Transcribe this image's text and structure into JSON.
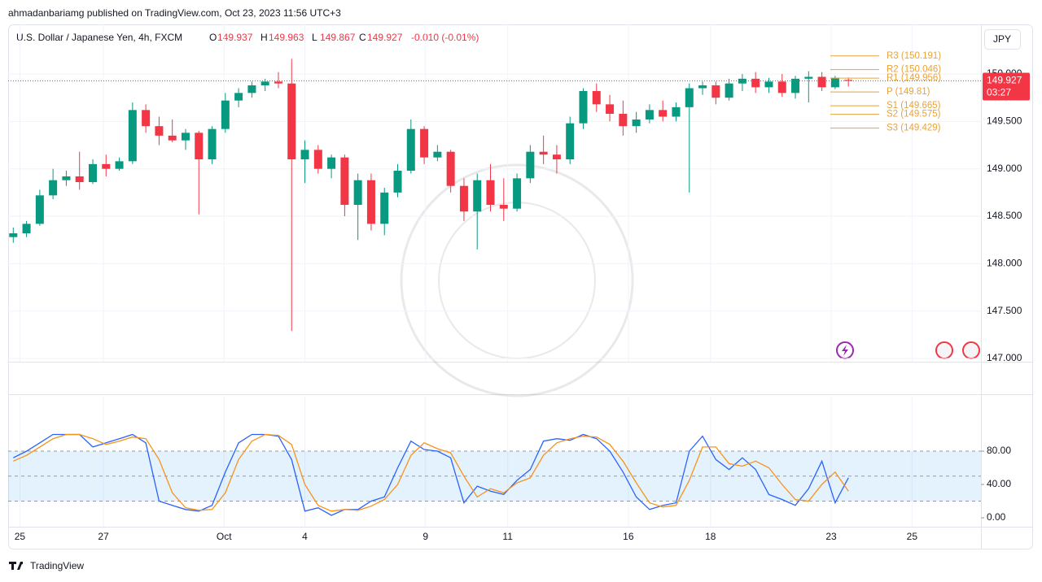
{
  "header": {
    "publisher": "ahmadanbariamg published on TradingView.com, Oct 23, 2023 11:56 UTC+3",
    "currency": "JPY",
    "footer": "TradingView"
  },
  "chart_data": [
    {
      "type": "candlestick",
      "legend": {
        "symbol": "U.S. Dollar / Japanese Yen, 4h, FXCM",
        "o_label": "O",
        "open": 149.937,
        "h_label": "H",
        "high": 149.963,
        "l_label": "L",
        "low": 149.867,
        "c_label": "C",
        "close": 149.927,
        "change": "-0.010 (-0.01%)"
      },
      "last_price": 149.927,
      "countdown": "03:27",
      "up_color": "#089981",
      "down_color": "#f23645",
      "xlim": [
        -1,
        73
      ],
      "xticks": [
        {
          "value": 0.5,
          "label": "25"
        },
        {
          "value": 6.8,
          "label": "27"
        },
        {
          "value": 15.9,
          "label": "Oct"
        },
        {
          "value": 22.0,
          "label": "4"
        },
        {
          "value": 31.1,
          "label": "9"
        },
        {
          "value": 37.3,
          "label": "11"
        },
        {
          "value": 46.4,
          "label": "16"
        },
        {
          "value": 52.6,
          "label": "18"
        },
        {
          "value": 61.7,
          "label": "23"
        },
        {
          "value": 67.8,
          "label": "25"
        }
      ],
      "ylim": [
        146.966,
        150.523
      ],
      "yticks": [
        {
          "value": 147,
          "label": "147.000"
        },
        {
          "value": 147.5,
          "label": "147.500"
        },
        {
          "value": 148,
          "label": "148.000"
        },
        {
          "value": 148.5,
          "label": "148.500"
        },
        {
          "value": 149,
          "label": "149.000"
        },
        {
          "value": 149.5,
          "label": "149.500"
        },
        {
          "value": 150,
          "label": "150.000"
        }
      ],
      "pivots": [
        {
          "value": 150.191,
          "label": "R3 (150.191)"
        },
        {
          "value": 150.046,
          "label": "R2 (150.046)"
        },
        {
          "value": 149.956,
          "label": "R1 (149.956)"
        },
        {
          "value": 149.81,
          "label": "P (149.81)"
        },
        {
          "value": 149.665,
          "label": "S1 (149.665)"
        },
        {
          "value": 149.575,
          "label": "S2 (149.575)"
        },
        {
          "value": 149.429,
          "label": "S3 (149.429)"
        }
      ],
      "pivot_color": "#e8a33d",
      "open": [
        148.28,
        148.32,
        148.42,
        148.72,
        148.88,
        148.92,
        148.86,
        149.05,
        149.0,
        149.08,
        149.62,
        149.45,
        149.35,
        149.3,
        149.38,
        149.1,
        149.42,
        149.72,
        149.8,
        149.88,
        149.92,
        149.9,
        149.1,
        149.2,
        149.0,
        149.12,
        148.62,
        148.88,
        148.42,
        148.75,
        148.98,
        149.42,
        149.12,
        149.18,
        148.82,
        148.55,
        148.88,
        148.62,
        148.58,
        148.9,
        149.18,
        149.15,
        149.1,
        149.48,
        149.82,
        149.68,
        149.58,
        149.45,
        149.52,
        149.62,
        149.55,
        149.65,
        149.85,
        149.88,
        149.75,
        149.9,
        149.95,
        149.86,
        149.92,
        149.8,
        149.95,
        149.97,
        149.86,
        149.937
      ],
      "high": [
        148.38,
        148.45,
        148.78,
        149.0,
        148.98,
        149.18,
        149.1,
        149.15,
        149.12,
        149.7,
        149.68,
        149.55,
        149.52,
        149.42,
        149.4,
        149.45,
        149.8,
        149.85,
        149.92,
        149.95,
        150.02,
        150.16,
        149.3,
        149.25,
        149.15,
        149.15,
        148.95,
        148.95,
        148.8,
        149.05,
        149.52,
        149.45,
        149.25,
        149.2,
        148.9,
        148.95,
        149.05,
        148.9,
        148.95,
        149.25,
        149.35,
        149.25,
        149.55,
        149.85,
        149.9,
        149.78,
        149.72,
        149.6,
        149.68,
        149.72,
        149.7,
        149.9,
        149.92,
        149.92,
        149.95,
        150.0,
        150.02,
        149.96,
        150.0,
        149.98,
        150.03,
        150.02,
        149.98,
        149.963
      ],
      "low": [
        148.22,
        148.28,
        148.4,
        148.68,
        148.82,
        148.78,
        148.84,
        148.92,
        148.98,
        149.05,
        149.38,
        149.25,
        149.28,
        149.2,
        148.52,
        149.05,
        149.38,
        149.65,
        149.75,
        149.82,
        149.85,
        147.29,
        148.85,
        148.95,
        148.9,
        148.5,
        148.25,
        148.35,
        148.3,
        148.7,
        148.95,
        149.05,
        149.08,
        148.75,
        148.45,
        148.15,
        148.55,
        148.45,
        148.55,
        148.85,
        149.05,
        148.95,
        149.05,
        149.42,
        149.6,
        149.5,
        149.35,
        149.38,
        149.48,
        149.5,
        149.5,
        148.75,
        149.78,
        149.68,
        149.72,
        149.82,
        149.8,
        149.8,
        149.76,
        149.74,
        149.7,
        149.82,
        149.84,
        149.867
      ],
      "close": [
        148.32,
        148.42,
        148.72,
        148.88,
        148.92,
        148.86,
        149.05,
        149.0,
        149.08,
        149.62,
        149.45,
        149.35,
        149.3,
        149.38,
        149.1,
        149.42,
        149.72,
        149.8,
        149.88,
        149.92,
        149.9,
        149.1,
        149.2,
        149.0,
        149.12,
        148.62,
        148.88,
        148.42,
        148.75,
        148.98,
        149.42,
        149.12,
        149.18,
        148.82,
        148.55,
        148.88,
        148.62,
        148.58,
        148.9,
        149.18,
        149.15,
        149.1,
        149.48,
        149.82,
        149.68,
        149.58,
        149.45,
        149.52,
        149.62,
        149.55,
        149.65,
        149.85,
        149.88,
        149.75,
        149.9,
        149.95,
        149.86,
        149.92,
        149.8,
        149.95,
        149.97,
        149.86,
        149.96,
        149.927
      ]
    },
    {
      "type": "line",
      "ylim": [
        -10.7,
        145.4
      ],
      "yticks": [
        {
          "value": 0,
          "label": "0.00"
        },
        {
          "value": 40,
          "label": "40.00"
        },
        {
          "value": 80,
          "label": "80.00"
        }
      ],
      "band": [
        20,
        80
      ],
      "band_color": "rgba(33,150,243,0.12)",
      "midline": 50,
      "series": [
        {
          "color": "#2962ff",
          "values": [
            72,
            80,
            90,
            100,
            100,
            100,
            85,
            90,
            95,
            100,
            90,
            20,
            15,
            10,
            8,
            15,
            55,
            90,
            100,
            100,
            98,
            70,
            8,
            12,
            3,
            10,
            10,
            20,
            25,
            60,
            92,
            82,
            80,
            72,
            18,
            38,
            32,
            28,
            45,
            58,
            92,
            95,
            93,
            100,
            95,
            80,
            55,
            25,
            10,
            15,
            18,
            80,
            98,
            70,
            58,
            72,
            58,
            28,
            22,
            15,
            35,
            68,
            18,
            48
          ]
        },
        {
          "color": "#f7931a",
          "values": [
            68,
            75,
            85,
            95,
            100,
            100,
            95,
            88,
            92,
            97,
            95,
            70,
            30,
            12,
            9,
            10,
            30,
            70,
            92,
            100,
            99,
            88,
            40,
            15,
            8,
            10,
            9,
            14,
            22,
            40,
            75,
            90,
            83,
            78,
            50,
            25,
            35,
            30,
            42,
            48,
            75,
            90,
            95,
            98,
            97,
            88,
            68,
            42,
            18,
            13,
            15,
            45,
            85,
            85,
            65,
            62,
            68,
            60,
            40,
            22,
            20,
            40,
            55,
            32
          ]
        }
      ]
    }
  ]
}
